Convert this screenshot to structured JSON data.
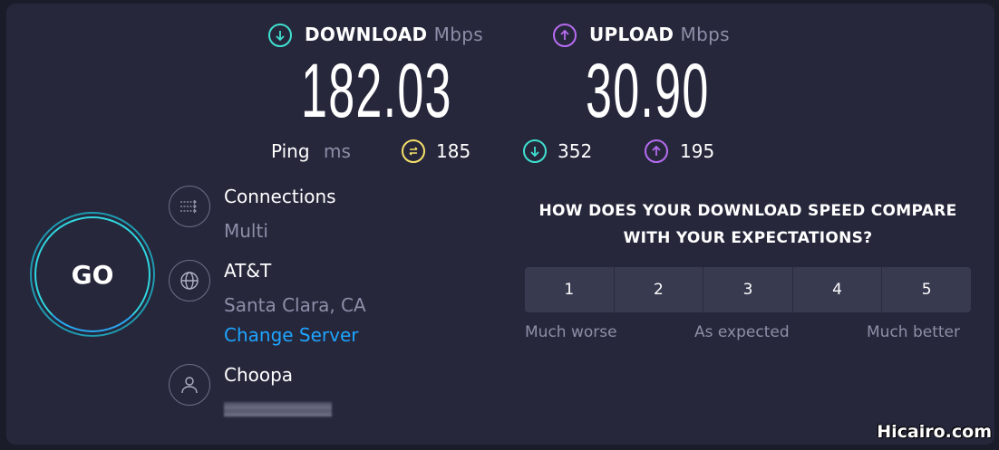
{
  "download": {
    "label": "DOWNLOAD",
    "unit": "Mbps",
    "value": "182.03",
    "icon": "download-arrow-icon",
    "color": "#3fe0d0"
  },
  "upload": {
    "label": "UPLOAD",
    "unit": "Mbps",
    "value": "30.90",
    "icon": "upload-arrow-icon",
    "color": "#b66cf0"
  },
  "ping": {
    "label": "Ping",
    "unit": "ms",
    "idle": "185",
    "download": "352",
    "upload": "195",
    "idle_color": "#f5e06a"
  },
  "connections": {
    "label": "Connections",
    "value": "Multi"
  },
  "server": {
    "label": "AT&T",
    "location": "Santa Clara, CA",
    "change_link": "Change Server"
  },
  "host": {
    "label": "Choopa"
  },
  "go": {
    "label": "GO"
  },
  "survey": {
    "question_line1": "HOW DOES YOUR DOWNLOAD SPEED COMPARE",
    "question_line2": "WITH YOUR EXPECTATIONS?",
    "options": [
      "1",
      "2",
      "3",
      "4",
      "5"
    ],
    "low": "Much worse",
    "mid": "As expected",
    "high": "Much better"
  },
  "watermark": "Hicairo.com"
}
